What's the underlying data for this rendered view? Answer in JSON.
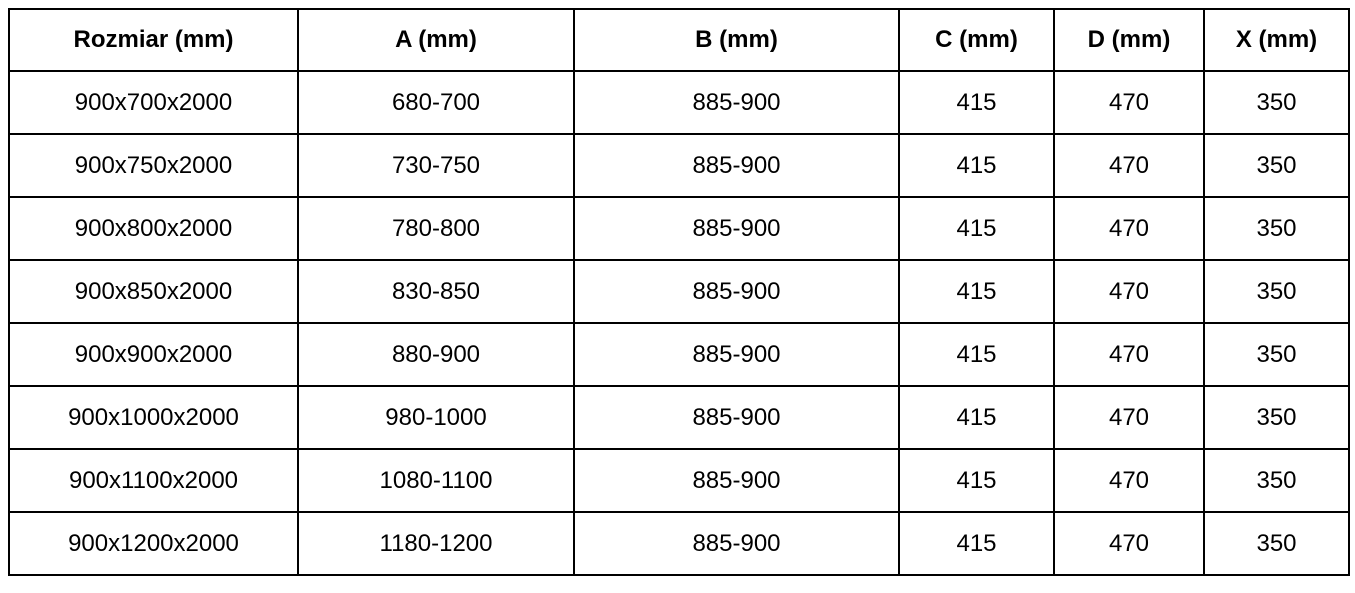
{
  "colors": {
    "background": "#ffffff",
    "border": "#000000",
    "text": "#000000"
  },
  "table": {
    "columns": [
      "Rozmiar (mm)",
      "A (mm)",
      "B (mm)",
      "C (mm)",
      "D (mm)",
      "X (mm)"
    ],
    "rows": [
      [
        "900x700x2000",
        "680-700",
        "885-900",
        "415",
        "470",
        "350"
      ],
      [
        "900x750x2000",
        "730-750",
        "885-900",
        "415",
        "470",
        "350"
      ],
      [
        "900x800x2000",
        "780-800",
        "885-900",
        "415",
        "470",
        "350"
      ],
      [
        "900x850x2000",
        "830-850",
        "885-900",
        "415",
        "470",
        "350"
      ],
      [
        "900x900x2000",
        "880-900",
        "885-900",
        "415",
        "470",
        "350"
      ],
      [
        "900x1000x2000",
        "980-1000",
        "885-900",
        "415",
        "470",
        "350"
      ],
      [
        "900x1100x2000",
        "1080-1100",
        "885-900",
        "415",
        "470",
        "350"
      ],
      [
        "900x1200x2000",
        "1180-1200",
        "885-900",
        "415",
        "470",
        "350"
      ]
    ]
  }
}
